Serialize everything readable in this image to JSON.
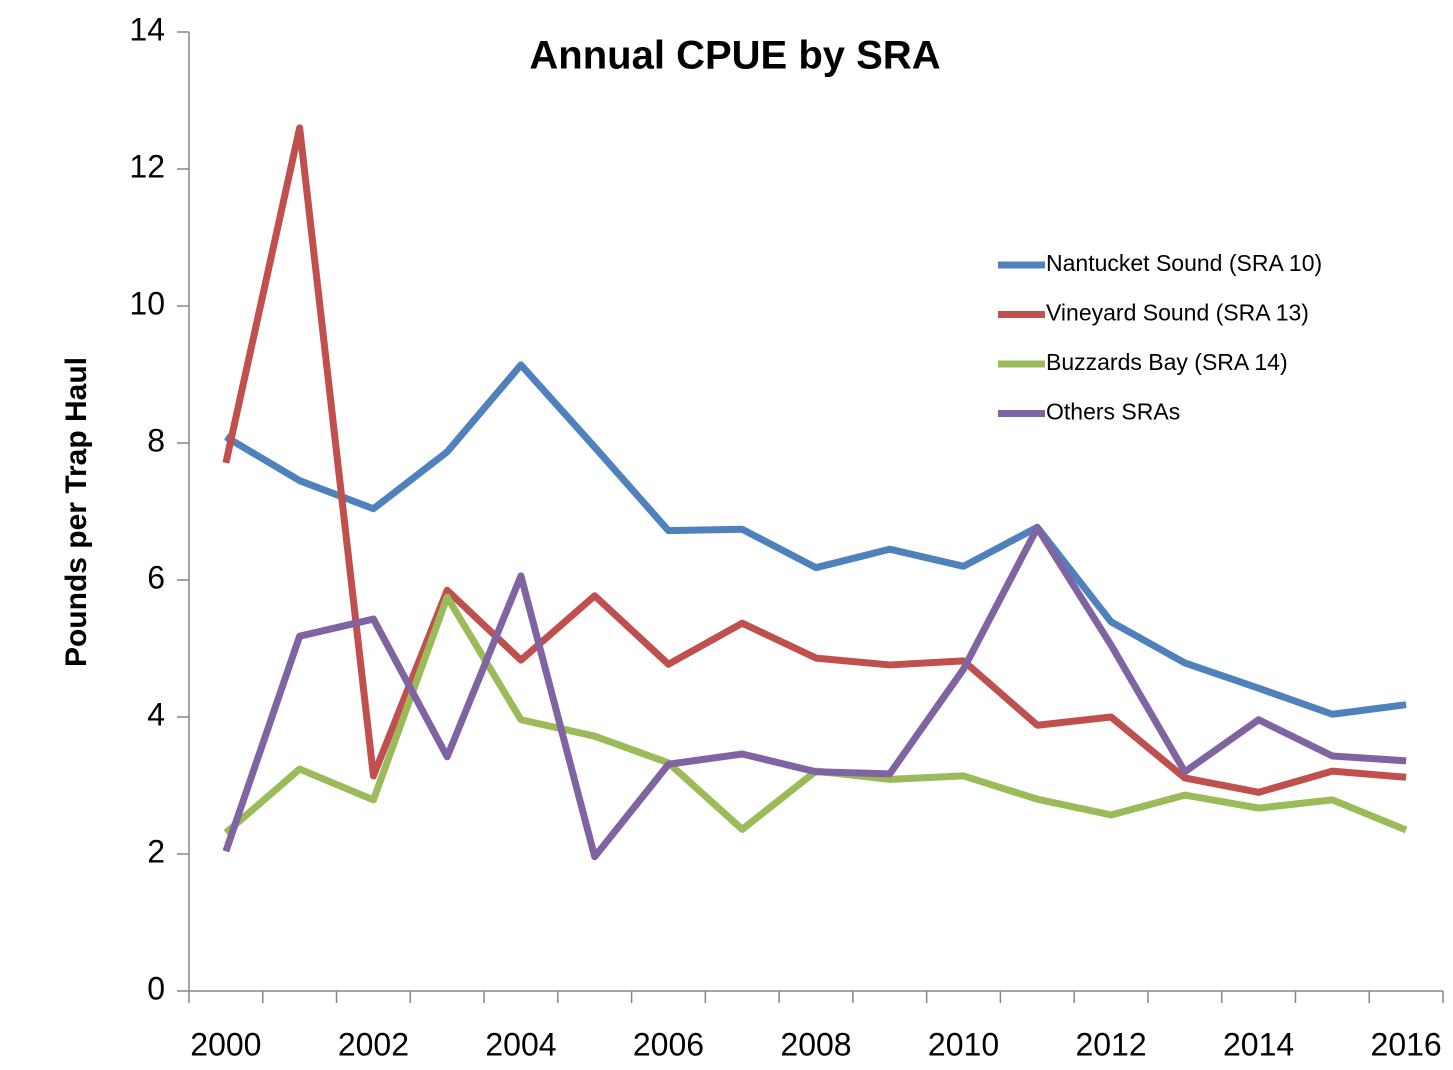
{
  "chart_data": {
    "type": "line",
    "title": "Annual CPUE by SRA",
    "y_label": "Pounds per Trap Haul",
    "categories": [
      "2000",
      null,
      "2002",
      null,
      "2004",
      null,
      "2006",
      null,
      "2008",
      null,
      "2010",
      null,
      "2012",
      null,
      "2014",
      null,
      "2016"
    ],
    "ylim": [
      0,
      14
    ],
    "yticks": [
      0,
      2,
      4,
      6,
      8,
      10,
      12,
      14
    ],
    "grid": false,
    "legend": "upper right",
    "series": [
      {
        "name": "Nantucket Sound (SRA 10)",
        "color": "#4f81bd",
        "values": [
          8.09,
          7.45,
          7.04,
          7.87,
          9.14,
          7.94,
          6.72,
          6.74,
          6.18,
          6.45,
          6.2,
          6.77,
          5.39,
          4.79,
          4.42,
          4.04,
          4.18
        ]
      },
      {
        "name": "Vineyard Sound (SRA 13)",
        "color": "#c0504d",
        "values": [
          7.71,
          12.6,
          3.14,
          5.85,
          4.83,
          5.77,
          4.77,
          5.37,
          4.86,
          4.76,
          4.82,
          3.88,
          4.0,
          3.11,
          2.9,
          3.21,
          3.12
        ]
      },
      {
        "name": "Buzzards Bay (SRA 14)",
        "color": "#9bbb59",
        "values": [
          2.31,
          3.24,
          2.79,
          5.75,
          3.96,
          3.72,
          3.33,
          2.36,
          3.21,
          3.09,
          3.14,
          2.8,
          2.57,
          2.86,
          2.67,
          2.79,
          2.35
        ]
      },
      {
        "name": "Others SRAs",
        "color": "#8064a2",
        "values": [
          2.04,
          5.18,
          5.43,
          3.42,
          6.06,
          1.96,
          3.31,
          3.46,
          3.2,
          3.17,
          4.7,
          6.76,
          5.05,
          3.2,
          3.96,
          3.43,
          3.36
        ]
      }
    ]
  }
}
